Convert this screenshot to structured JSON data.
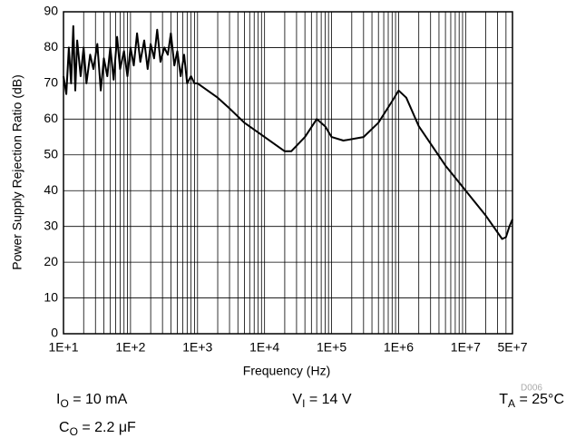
{
  "chart_data": {
    "type": "line",
    "xlabel": "Frequency (Hz)",
    "ylabel": "Power Supply Rejection Ratio (dB)",
    "figure_id": "D006",
    "annotations": [
      {
        "main": "I",
        "sub": "O",
        "rest": " = 10 mA"
      },
      {
        "main": "V",
        "sub": "I",
        "rest": " = 14 V"
      },
      {
        "main": "T",
        "sub": "A",
        "rest": " = 25°C"
      },
      {
        "main": "C",
        "sub": "O",
        "rest": " = 2.2 μF"
      }
    ],
    "log_x": true,
    "grid": true,
    "minor_grid": true,
    "xlim": [
      10,
      50000000
    ],
    "ylim": [
      0,
      90
    ],
    "xticks": [
      {
        "value": 10,
        "label": "1E+1"
      },
      {
        "value": 100,
        "label": "1E+2"
      },
      {
        "value": 1000,
        "label": "1E+3"
      },
      {
        "value": 10000,
        "label": "1E+4"
      },
      {
        "value": 100000,
        "label": "1E+5"
      },
      {
        "value": 1000000,
        "label": "1E+6"
      },
      {
        "value": 10000000,
        "label": "1E+7"
      },
      {
        "value": 50000000,
        "label": "5E+7"
      }
    ],
    "yticks": [
      0,
      10,
      20,
      30,
      40,
      50,
      60,
      70,
      80,
      90
    ],
    "series": [
      {
        "color": "#000000",
        "x": [
          10,
          11,
          12,
          13,
          14,
          15,
          16,
          18,
          20,
          22,
          25,
          28,
          32,
          36,
          40,
          45,
          50,
          56,
          63,
          70,
          80,
          90,
          100,
          112,
          125,
          140,
          160,
          180,
          200,
          225,
          250,
          280,
          320,
          360,
          400,
          450,
          500,
          560,
          630,
          700,
          800,
          900,
          1000,
          2000,
          3000,
          5000,
          10000,
          20000,
          25000,
          40000,
          60000,
          80000,
          100000,
          150000,
          300000,
          500000,
          800000,
          1000000,
          1300000,
          2000000,
          5000000,
          10000000,
          20000000,
          35000000,
          40000000,
          45000000,
          50000000
        ],
        "values": [
          72,
          67,
          80,
          70,
          86,
          68,
          82,
          72,
          80,
          70,
          78,
          74,
          81,
          68,
          77,
          72,
          80,
          71,
          83,
          74,
          79,
          72,
          80,
          75,
          84,
          76,
          82,
          74,
          81,
          77,
          85,
          76,
          80,
          78,
          84,
          75,
          79,
          72,
          78,
          70,
          72,
          70,
          70,
          66,
          63,
          59,
          55,
          51,
          51,
          55,
          60,
          58,
          55,
          54,
          55,
          59,
          65,
          68,
          66,
          58,
          47,
          40,
          33,
          26.5,
          27,
          30,
          32
        ]
      }
    ]
  }
}
